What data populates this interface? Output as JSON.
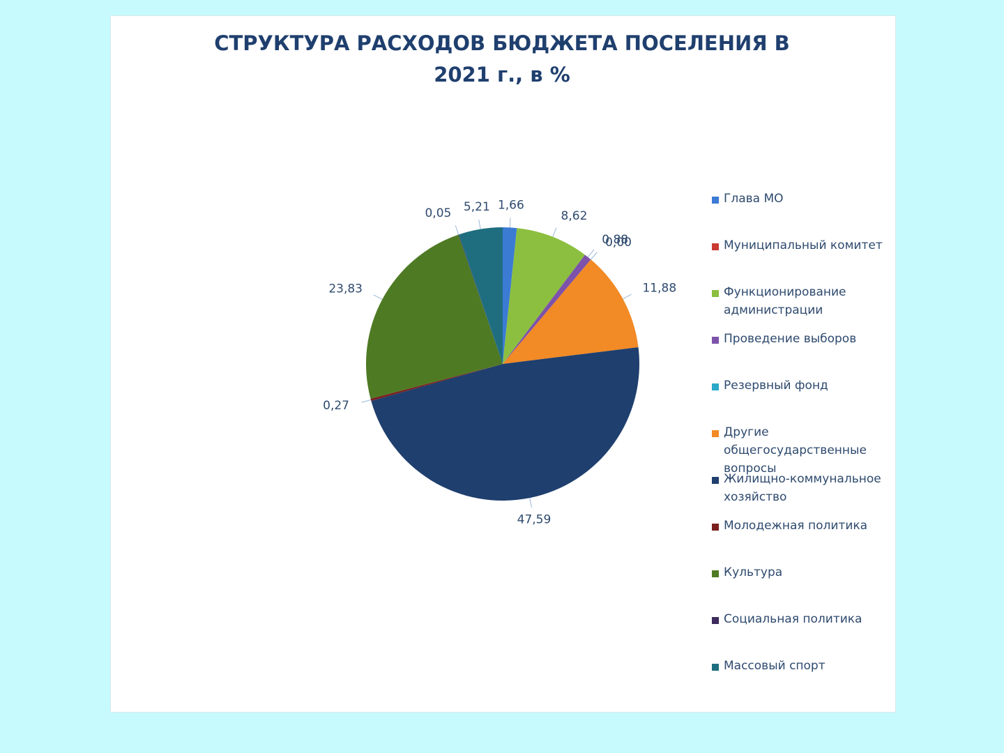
{
  "chart_data": {
    "type": "pie",
    "title": "СТРУКТУРА РАСХОДОВ БЮДЖЕТА ПОСЕЛЕНИЯ В 2021 г., в %",
    "categories": [
      "Глава МО",
      "Муниципальный комитет",
      "Функционирование администрации",
      "Проведение выборов",
      "Резервный фонд",
      "Другие общегосударственные вопросы",
      "Жилищно-коммунальное хозяйство",
      "Молодежная политика",
      "Культура",
      "Социальная политика",
      "Массовый спорт"
    ],
    "values": [
      1.66,
      null,
      8.62,
      0.88,
      0.0,
      11.88,
      47.59,
      0.27,
      23.83,
      0.05,
      5.21
    ],
    "value_labels": [
      "1,66",
      null,
      "8,62",
      "0,88",
      "0,00",
      "11,88",
      "47,59",
      "0,27",
      "23,83",
      "0,05",
      "5,21"
    ],
    "colors": [
      "#3b7bd4",
      "#c93a32",
      "#8cbf3f",
      "#7d52aa",
      "#2aa9c9",
      "#f28a25",
      "#1f3f6e",
      "#7a1f1f",
      "#4f7a24",
      "#3c2b5c",
      "#1f6e80"
    ],
    "legend": "right"
  }
}
